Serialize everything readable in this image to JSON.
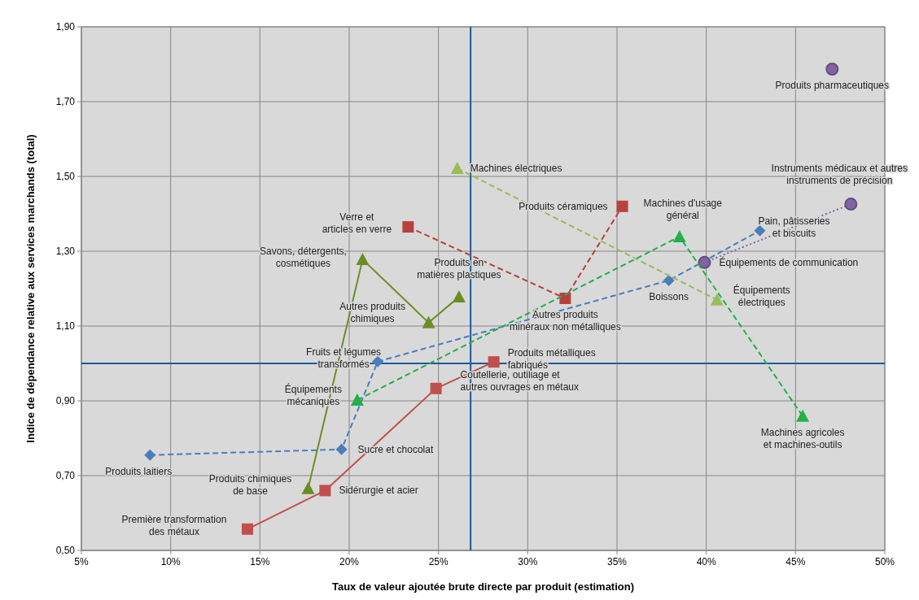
{
  "chart_data": {
    "type": "line",
    "xlabel": "Taux de valeur ajoutée brute directe par produit (estimation)",
    "ylabel": "Indice de dépendance relative aux services marchands (total)",
    "xlim": [
      5,
      50
    ],
    "xticks": [
      {
        "value": 5,
        "label": "5%"
      },
      {
        "value": 10,
        "label": "10%"
      },
      {
        "value": 15,
        "label": "15%"
      },
      {
        "value": 20,
        "label": "20%"
      },
      {
        "value": 25,
        "label": "25%"
      },
      {
        "value": 30,
        "label": "30%"
      },
      {
        "value": 35,
        "label": "35%"
      },
      {
        "value": 40,
        "label": "40%"
      },
      {
        "value": 45,
        "label": "45%"
      },
      {
        "value": 50,
        "label": "50%"
      }
    ],
    "ylim": [
      0.5,
      1.9
    ],
    "yticks": [
      {
        "value": 0.5,
        "label": "0,50"
      },
      {
        "value": 0.7,
        "label": "0,70"
      },
      {
        "value": 0.9,
        "label": "0,90"
      },
      {
        "value": 1.1,
        "label": "1,10"
      },
      {
        "value": 1.3,
        "label": "1,30"
      },
      {
        "value": 1.5,
        "label": "1,50"
      },
      {
        "value": 1.7,
        "label": "1,70"
      },
      {
        "value": 1.9,
        "label": "1,90"
      }
    ],
    "grid": true,
    "series": [
      {
        "color": "#4a7ebb",
        "marker": "diamond",
        "line_style": "dashed",
        "x": [
          8.84,
          19.57,
          21.6,
          37.9,
          43.0
        ],
        "values": [
          0.755,
          0.77,
          1.005,
          1.222,
          1.355
        ]
      },
      {
        "color": "#8064a2",
        "marker": "circle",
        "line_style": "dotted",
        "x": [
          39.9,
          48.1
        ],
        "values": [
          1.27,
          1.426
        ]
      },
      {
        "type": "scatter",
        "color": "#8064a2",
        "marker": "circle",
        "x": [
          47.05
        ],
        "values": [
          1.787
        ]
      },
      {
        "color": "#c0504d",
        "marker": "square",
        "line_style": "solid",
        "x": [
          14.3,
          18.65,
          24.86,
          28.1
        ],
        "values": [
          0.557,
          0.66,
          0.933,
          1.004
        ]
      },
      {
        "color": "#b7413e",
        "marker": "square",
        "line_style": "dashed",
        "x": [
          23.3,
          32.1,
          35.3
        ],
        "values": [
          1.365,
          1.174,
          1.42
        ]
      },
      {
        "color": "#6b8e23",
        "marker": "triangle",
        "line_style": "solid",
        "x": [
          17.7,
          20.75,
          24.45,
          26.15
        ],
        "values": [
          0.666,
          1.278,
          1.109,
          1.178
        ]
      },
      {
        "color": "#22b04b",
        "marker": "triangle",
        "line_style": "dashed",
        "x": [
          20.45,
          38.5,
          45.4
        ],
        "values": [
          0.902,
          1.339,
          0.859
        ]
      },
      {
        "color": "#9bbb59",
        "marker": "triangle",
        "line_style": "dashed",
        "x": [
          26.05,
          40.6
        ],
        "values": [
          1.522,
          1.17
        ]
      }
    ],
    "ref_lines": [
      {
        "axis": "x",
        "value": 26.8,
        "color": "#1f5b99"
      },
      {
        "axis": "y",
        "value": 1.0,
        "color": "#1f5b99"
      }
    ],
    "annotations": [
      {
        "text": "Produits laitiers",
        "x": 8.84,
        "y": 0.755
      },
      {
        "text": "Sucre et chocolat",
        "x": 19.57,
        "y": 0.77
      },
      {
        "text": "Fruits et légumes\ntransformés",
        "x": 21.6,
        "y": 1.005
      },
      {
        "text": "Boissons",
        "x": 37.9,
        "y": 1.222
      },
      {
        "text": "Pain, pâtisseries\net biscuits",
        "x": 43.0,
        "y": 1.355
      },
      {
        "text": "Équipements de communication",
        "x": 39.9,
        "y": 1.27
      },
      {
        "text": "Instruments médicaux et autres\ninstruments de précision",
        "x": 48.1,
        "y": 1.426
      },
      {
        "text": "Produits pharmaceutiques",
        "x": 47.05,
        "y": 1.787
      },
      {
        "text": "Première transformation\ndes métaux",
        "x": 14.3,
        "y": 0.557
      },
      {
        "text": "Sidérurgie et acier",
        "x": 18.65,
        "y": 0.66
      },
      {
        "text": "Coutellerie, outillage et\nautres ouvrages en métaux",
        "x": 24.86,
        "y": 0.933
      },
      {
        "text": "Produits métalliques\nfabriqués",
        "x": 28.1,
        "y": 1.004
      },
      {
        "text": "Verre et\narticles en verre",
        "x": 23.3,
        "y": 1.365
      },
      {
        "text": "Autres produits\nminéraux non métalliques",
        "x": 32.1,
        "y": 1.174
      },
      {
        "text": "Produits céramiques",
        "x": 35.3,
        "y": 1.42
      },
      {
        "text": "Savons, détergents,\ncosmétiques",
        "x": 20.75,
        "y": 1.278
      },
      {
        "text": "Autres produits\nchimiques",
        "x": 24.45,
        "y": 1.109
      },
      {
        "text": "Produits en\nmatières plastiques",
        "x": 26.15,
        "y": 1.178
      },
      {
        "text": "Produits chimiques\nde base",
        "x": 17.7,
        "y": 0.666
      },
      {
        "text": "Équipements\nmécaniques",
        "x": 20.45,
        "y": 0.902
      },
      {
        "text": "Machines d'usage\ngénéral",
        "x": 38.5,
        "y": 1.339
      },
      {
        "text": "Machines agricoles\net machines-outils",
        "x": 45.4,
        "y": 0.859
      },
      {
        "text": "Machines électriques",
        "x": 26.05,
        "y": 1.522
      },
      {
        "text": "Équipements\nélectriques",
        "x": 40.6,
        "y": 1.17
      }
    ]
  }
}
